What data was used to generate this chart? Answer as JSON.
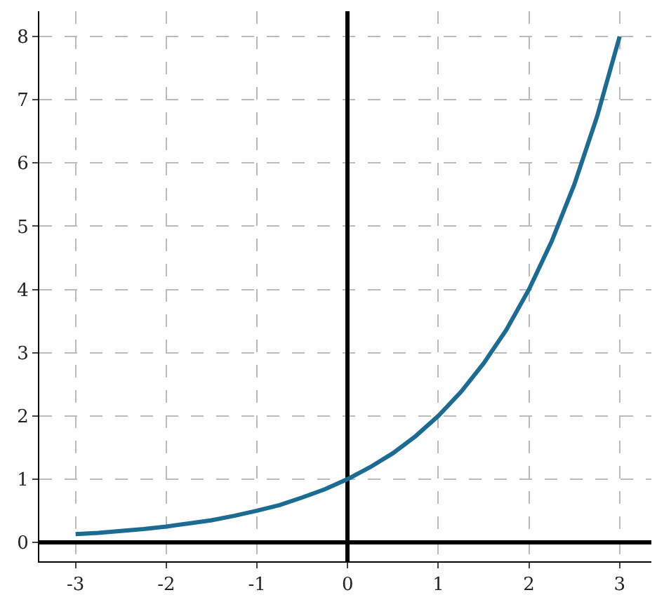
{
  "chart_data": {
    "type": "line",
    "x": [
      -3,
      -2.75,
      -2.5,
      -2.25,
      -2,
      -1.75,
      -1.5,
      -1.25,
      -1,
      -0.75,
      -0.5,
      -0.25,
      0,
      0.25,
      0.5,
      0.75,
      1,
      1.25,
      1.5,
      1.75,
      2,
      2.25,
      2.5,
      2.75,
      3
    ],
    "series": [
      {
        "color": "#1b6b93",
        "values": [
          0.13,
          0.15,
          0.18,
          0.21,
          0.25,
          0.3,
          0.35,
          0.42,
          0.5,
          0.59,
          0.71,
          0.84,
          1,
          1.19,
          1.41,
          1.68,
          2,
          2.38,
          2.83,
          3.36,
          4,
          4.76,
          5.66,
          6.73,
          8
        ]
      }
    ],
    "xlim": [
      -3.4,
      3.35
    ],
    "ylim": [
      -0.3,
      8.4
    ],
    "xticks": [
      -3,
      -2,
      -1,
      0,
      1,
      2,
      3
    ],
    "yticks": [
      0,
      1,
      2,
      3,
      4,
      5,
      6,
      7,
      8
    ],
    "grid": true,
    "marker": "none",
    "line_style": "solid"
  }
}
